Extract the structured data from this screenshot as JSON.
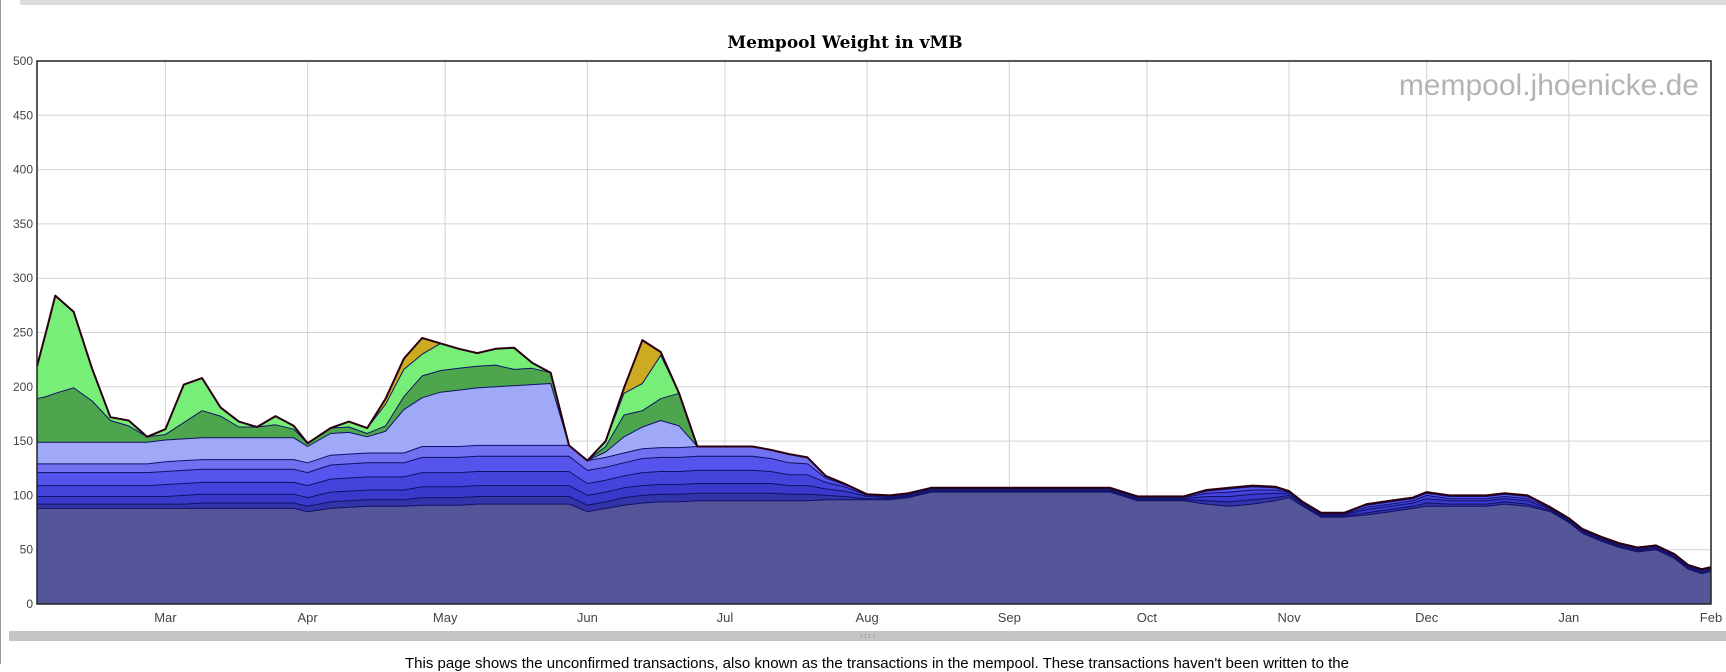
{
  "chart_data": {
    "type": "area",
    "title": "Mempool Weight in vMB",
    "watermark": "mempool.jhoenicke.de",
    "stacked": true,
    "grid": true,
    "ylim": [
      0,
      500
    ],
    "yticks": [
      0,
      50,
      100,
      150,
      200,
      250,
      300,
      350,
      400,
      450,
      500
    ],
    "xlim": [
      0,
      365
    ],
    "xticks": [
      {
        "label": "Mar",
        "day": 28
      },
      {
        "label": "Apr",
        "day": 59
      },
      {
        "label": "May",
        "day": 89
      },
      {
        "label": "Jun",
        "day": 120
      },
      {
        "label": "Jul",
        "day": 150
      },
      {
        "label": "Aug",
        "day": 181
      },
      {
        "label": "Sep",
        "day": 212
      },
      {
        "label": "Oct",
        "day": 242
      },
      {
        "label": "Nov",
        "day": 273
      },
      {
        "label": "Dec",
        "day": 303
      },
      {
        "label": "Jan",
        "day": 334
      },
      {
        "label": "Feb",
        "day": 365
      }
    ],
    "x": [
      0,
      2,
      4,
      8,
      12,
      16,
      20,
      24,
      28,
      32,
      36,
      40,
      44,
      48,
      52,
      56,
      59,
      64,
      68,
      72,
      76,
      80,
      84,
      88,
      92,
      96,
      100,
      104,
      108,
      112,
      116,
      120,
      124,
      128,
      132,
      136,
      140,
      144,
      148,
      152,
      156,
      160,
      164,
      168,
      172,
      176,
      181,
      186,
      190,
      195,
      200,
      205,
      212,
      216,
      222,
      228,
      234,
      240,
      246,
      250,
      255,
      260,
      265,
      270,
      273,
      276,
      280,
      285,
      290,
      295,
      300,
      303,
      308,
      312,
      316,
      320,
      325,
      330,
      334,
      337,
      341,
      345,
      349,
      353,
      357,
      360,
      363,
      365
    ],
    "series": [
      {
        "color": "#555599",
        "values": [
          88,
          88,
          88,
          88,
          88,
          88,
          88,
          88,
          88,
          88,
          88,
          88,
          88,
          88,
          88,
          88,
          85,
          88,
          89,
          90,
          90,
          90,
          91,
          91,
          91,
          92,
          92,
          92,
          92,
          92,
          92,
          85,
          88,
          91,
          93,
          94,
          94,
          95,
          95,
          95,
          95,
          95,
          95,
          95,
          96,
          96,
          96,
          96,
          98,
          103,
          103,
          103,
          103,
          103,
          103,
          103,
          103,
          95,
          95,
          95,
          92,
          90,
          92,
          95,
          98,
          90,
          80,
          80,
          82,
          85,
          88,
          90,
          90,
          90,
          90,
          92,
          90,
          85,
          75,
          65,
          58,
          52,
          48,
          50,
          42,
          32,
          28,
          30
        ]
      },
      {
        "color": "#3333aa",
        "values": [
          4,
          4,
          4,
          4,
          4,
          4,
          4,
          4,
          4,
          4,
          5,
          5,
          5,
          5,
          5,
          5,
          5,
          6,
          6,
          6,
          6,
          6,
          7,
          7,
          7,
          7,
          7,
          7,
          7,
          7,
          7,
          6,
          6,
          7,
          7,
          7,
          7,
          7,
          7,
          7,
          7,
          7,
          6,
          6,
          4,
          3,
          1,
          1,
          1,
          1,
          1,
          1,
          1,
          1,
          1,
          1,
          1,
          1,
          1,
          1,
          3,
          4,
          4,
          3,
          2,
          1,
          1,
          1,
          2,
          2,
          2,
          3,
          2,
          2,
          2,
          2,
          2,
          1,
          1,
          1,
          1,
          1,
          1,
          1,
          1,
          1,
          1,
          1
        ]
      },
      {
        "color": "#3939cc",
        "values": [
          7,
          7,
          7,
          7,
          7,
          7,
          7,
          7,
          7,
          8,
          8,
          8,
          8,
          8,
          8,
          8,
          8,
          9,
          9,
          9,
          9,
          9,
          10,
          10,
          10,
          10,
          10,
          10,
          10,
          10,
          10,
          9,
          9,
          9,
          9,
          9,
          9,
          9,
          9,
          9,
          9,
          9,
          8,
          8,
          6,
          5,
          2,
          1,
          1,
          1,
          1,
          1,
          1,
          1,
          1,
          1,
          1,
          1,
          1,
          1,
          4,
          5,
          5,
          4,
          2,
          1,
          1,
          1,
          3,
          3,
          3,
          4,
          3,
          3,
          3,
          3,
          3,
          1,
          1,
          1,
          1,
          1,
          1,
          1,
          1,
          1,
          1,
          1
        ]
      },
      {
        "color": "#4444dd",
        "values": [
          10,
          10,
          10,
          10,
          10,
          10,
          10,
          10,
          11,
          11,
          11,
          11,
          11,
          11,
          11,
          11,
          11,
          12,
          12,
          12,
          12,
          12,
          13,
          13,
          13,
          13,
          13,
          13,
          13,
          13,
          13,
          11,
          11,
          11,
          12,
          12,
          12,
          12,
          12,
          12,
          12,
          11,
          10,
          10,
          6,
          4,
          1,
          1,
          1,
          1,
          1,
          1,
          1,
          1,
          1,
          1,
          1,
          1,
          1,
          1,
          3,
          4,
          4,
          3,
          1,
          1,
          1,
          1,
          2,
          2,
          2,
          3,
          2,
          2,
          2,
          2,
          2,
          1,
          1,
          1,
          1,
          1,
          1,
          1,
          1,
          1,
          1,
          1
        ]
      },
      {
        "color": "#5555ee",
        "values": [
          12,
          12,
          12,
          12,
          12,
          12,
          12,
          12,
          12,
          12,
          12,
          12,
          12,
          12,
          12,
          12,
          12,
          13,
          13,
          13,
          13,
          13,
          14,
          14,
          14,
          14,
          14,
          14,
          14,
          14,
          14,
          12,
          12,
          12,
          13,
          13,
          13,
          13,
          13,
          13,
          13,
          12,
          11,
          10,
          4,
          2,
          1,
          1,
          1,
          1,
          1,
          1,
          1,
          1,
          1,
          1,
          1,
          1,
          1,
          1,
          2,
          3,
          3,
          2,
          1,
          1,
          1,
          1,
          2,
          2,
          2,
          2,
          2,
          2,
          2,
          2,
          2,
          1,
          1,
          1,
          1,
          1,
          1,
          1,
          1,
          1,
          1,
          1
        ]
      },
      {
        "color": "#7070f0",
        "values": [
          8,
          8,
          8,
          8,
          8,
          8,
          8,
          8,
          9,
          9,
          9,
          9,
          9,
          9,
          9,
          9,
          9,
          9,
          9,
          9,
          9,
          9,
          10,
          10,
          10,
          10,
          10,
          10,
          10,
          10,
          10,
          9,
          9,
          9,
          9,
          9,
          9,
          9,
          9,
          9,
          9,
          8,
          8,
          6,
          2,
          1,
          0,
          0,
          0,
          0,
          0,
          0,
          0,
          0,
          0,
          0,
          0,
          0,
          0,
          0,
          1,
          1,
          1,
          1,
          0,
          0,
          0,
          0,
          1,
          1,
          1,
          1,
          1,
          1,
          1,
          1,
          1,
          0,
          0,
          0,
          0,
          0,
          0,
          0,
          0,
          0,
          0,
          0
        ]
      },
      {
        "color": "#a0a8f8",
        "values": [
          20,
          20,
          20,
          20,
          20,
          20,
          20,
          20,
          20,
          20,
          20,
          20,
          20,
          20,
          20,
          20,
          15,
          20,
          20,
          15,
          20,
          40,
          45,
          50,
          52,
          53,
          54,
          55,
          56,
          57,
          0,
          0,
          5,
          15,
          20,
          25,
          20,
          0,
          0,
          0,
          0,
          0,
          0,
          0,
          0,
          0,
          0,
          0,
          0,
          0,
          0,
          0,
          0,
          0,
          0,
          0,
          0,
          0,
          0,
          0,
          0,
          0,
          0,
          0,
          0,
          0,
          0,
          0,
          0,
          0,
          0,
          0,
          0,
          0,
          0,
          0,
          0,
          0,
          0,
          0,
          0,
          0,
          0,
          0,
          0,
          0,
          0,
          0
        ]
      },
      {
        "color": "#4da64d",
        "values": [
          40,
          42,
          45,
          50,
          38,
          20,
          15,
          5,
          5,
          15,
          25,
          20,
          10,
          10,
          12,
          8,
          3,
          5,
          5,
          3,
          5,
          12,
          20,
          20,
          20,
          20,
          20,
          15,
          15,
          10,
          0,
          0,
          5,
          20,
          15,
          20,
          30,
          0,
          0,
          0,
          0,
          0,
          0,
          0,
          0,
          0,
          0,
          0,
          0,
          0,
          0,
          0,
          0,
          0,
          0,
          0,
          0,
          0,
          0,
          0,
          0,
          0,
          0,
          0,
          0,
          0,
          0,
          0,
          0,
          0,
          0,
          0,
          0,
          0,
          0,
          0,
          0,
          0,
          0,
          0,
          0,
          0,
          0,
          0,
          0,
          0,
          0,
          0
        ]
      },
      {
        "color": "#77ee77",
        "values": [
          30,
          60,
          90,
          70,
          30,
          3,
          5,
          0,
          5,
          35,
          30,
          8,
          5,
          0,
          8,
          3,
          0,
          0,
          5,
          5,
          20,
          25,
          20,
          25,
          18,
          12,
          15,
          20,
          5,
          0,
          0,
          0,
          5,
          20,
          25,
          40,
          0,
          0,
          0,
          0,
          0,
          0,
          0,
          0,
          0,
          0,
          0,
          0,
          0,
          0,
          0,
          0,
          0,
          0,
          0,
          0,
          0,
          0,
          0,
          0,
          0,
          0,
          0,
          0,
          0,
          0,
          0,
          0,
          0,
          0,
          0,
          0,
          0,
          0,
          0,
          0,
          0,
          0,
          0,
          0,
          0,
          0,
          0,
          0,
          0,
          0,
          0,
          0
        ]
      },
      {
        "color": "#ccaa22",
        "values": [
          0,
          0,
          0,
          0,
          0,
          0,
          0,
          0,
          0,
          0,
          0,
          0,
          0,
          0,
          0,
          0,
          0,
          0,
          0,
          0,
          5,
          10,
          15,
          0,
          0,
          0,
          0,
          0,
          0,
          0,
          0,
          0,
          0,
          5,
          40,
          3,
          0,
          0,
          0,
          0,
          0,
          0,
          0,
          0,
          0,
          0,
          0,
          0,
          0,
          0,
          0,
          0,
          0,
          0,
          0,
          0,
          0,
          0,
          0,
          0,
          0,
          0,
          0,
          0,
          0,
          0,
          0,
          0,
          0,
          0,
          0,
          0,
          0,
          0,
          0,
          0,
          0,
          0,
          0,
          0,
          0,
          0,
          0,
          0,
          0,
          0,
          0,
          0
        ]
      }
    ]
  },
  "page": {
    "body_text": "This page shows the unconfirmed transactions, also known as the transactions in the mempool. These transactions haven't been written to the"
  },
  "colors": {
    "outline": "#2a0010",
    "grid": "#d4d4d4",
    "watermark": "#b4b4b4",
    "axis_text": "#444444"
  }
}
